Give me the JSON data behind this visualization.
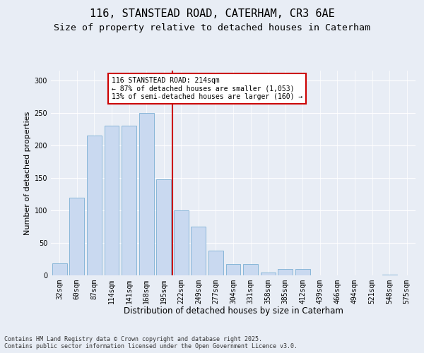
{
  "title1": "116, STANSTEAD ROAD, CATERHAM, CR3 6AE",
  "title2": "Size of property relative to detached houses in Caterham",
  "xlabel": "Distribution of detached houses by size in Caterham",
  "ylabel": "Number of detached properties",
  "categories": [
    "32sqm",
    "60sqm",
    "87sqm",
    "114sqm",
    "141sqm",
    "168sqm",
    "195sqm",
    "222sqm",
    "249sqm",
    "277sqm",
    "304sqm",
    "331sqm",
    "358sqm",
    "385sqm",
    "412sqm",
    "439sqm",
    "466sqm",
    "494sqm",
    "521sqm",
    "548sqm",
    "575sqm"
  ],
  "values": [
    18,
    120,
    215,
    230,
    230,
    250,
    148,
    100,
    75,
    38,
    17,
    17,
    4,
    10,
    10,
    0,
    0,
    0,
    0,
    1,
    0
  ],
  "bar_color": "#c9d9f0",
  "bar_edge_color": "#7bafd4",
  "vline_color": "#cc0000",
  "annotation_text": "116 STANSTEAD ROAD: 214sqm\n← 87% of detached houses are smaller (1,053)\n13% of semi-detached houses are larger (160) →",
  "annotation_box_color": "#ffffff",
  "annotation_box_edge": "#cc0000",
  "ylim": [
    0,
    315
  ],
  "yticks": [
    0,
    50,
    100,
    150,
    200,
    250,
    300
  ],
  "background_color": "#e8edf5",
  "plot_bg_color": "#e8edf5",
  "footer": "Contains HM Land Registry data © Crown copyright and database right 2025.\nContains public sector information licensed under the Open Government Licence v3.0.",
  "title1_fontsize": 11,
  "title2_fontsize": 9.5,
  "xlabel_fontsize": 8.5,
  "ylabel_fontsize": 8,
  "tick_fontsize": 7,
  "annotation_fontsize": 7,
  "footer_fontsize": 6
}
